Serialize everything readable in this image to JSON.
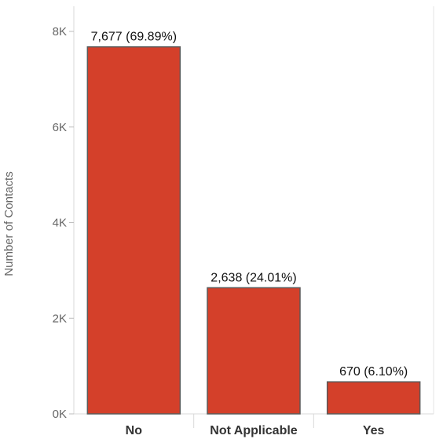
{
  "chart_data": {
    "type": "bar",
    "categories": [
      "No",
      "Not Applicable",
      "Yes"
    ],
    "values": [
      7677,
      2638,
      670
    ],
    "data_labels": [
      "7,677 (69.89%)",
      "2,638 (24.01%)",
      "670 (6.10%)"
    ],
    "ylabel": "Number of Contacts",
    "xlabel": "",
    "ylim": [
      0,
      8000
    ],
    "yticks": [
      0,
      2000,
      4000,
      6000,
      8000
    ],
    "ytick_labels": [
      "0K",
      "2K",
      "4K",
      "6K",
      "8K"
    ],
    "grid": false,
    "bar_color": "#D4402A",
    "bar_edge_color": "#5A5A5A"
  }
}
